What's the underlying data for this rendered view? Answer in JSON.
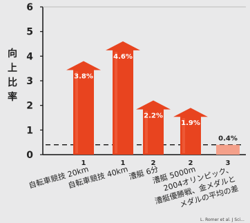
{
  "chart_data": {
    "type": "bar",
    "ylabel": "向上比率",
    "ylim": [
      0,
      6
    ],
    "yticks": [
      "0",
      "1",
      "2",
      "3",
      "4",
      "5",
      "6"
    ],
    "reference_line": 0.4,
    "categories": [
      {
        "rank": "1",
        "label_lines": [
          "自転車競技 20km"
        ]
      },
      {
        "rank": "1",
        "label_lines": [
          "自転車競技 40km"
        ]
      },
      {
        "rank": "2",
        "label_lines": [
          "漕艇 6分"
        ]
      },
      {
        "rank": "2",
        "label_lines": [
          "漕艇 5000m"
        ]
      },
      {
        "rank": "3",
        "label_lines": [
          "2004オリンピック、",
          "漕艇優勝戦、金メダルと",
          "メダルの平均の差"
        ]
      }
    ],
    "values": [
      3.8,
      4.6,
      2.2,
      1.9,
      0.4
    ],
    "data_labels": [
      "3.8%",
      "4.6%",
      "2.2%",
      "1.9%",
      "0.4%"
    ],
    "colors": {
      "bar": "#e8441f",
      "bar_last": "#f4a08a",
      "arrow_top": "#d93a1a"
    },
    "source": "L. Romer et al. J Sci..."
  }
}
